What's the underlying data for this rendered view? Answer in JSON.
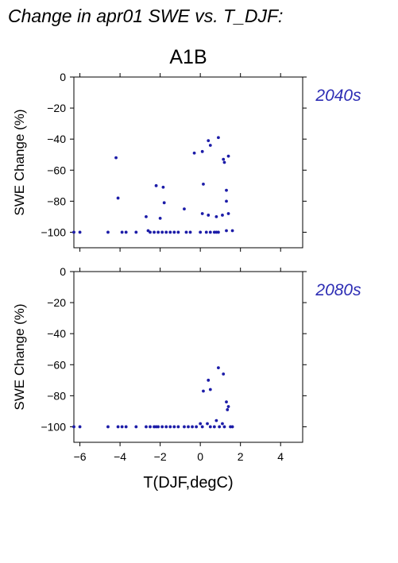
{
  "title": "Change in apr01 SWE vs. T_DJF:",
  "scenario": "A1B",
  "point_color": "#1c1ca8",
  "label_color": "#2d2db4",
  "xlabel": "T(DJF,degC)",
  "chart_data": [
    {
      "type": "scatter",
      "period_label": "2040s",
      "ylabel": "SWE Change (%)",
      "xlim": [
        -6.3,
        5.1
      ],
      "ylim": [
        -110,
        0
      ],
      "x_ticks": [
        -6,
        -4,
        -2,
        0,
        2,
        4
      ],
      "x_tick_labels": [
        "−6",
        "−4",
        "−2",
        "0",
        "2",
        "4"
      ],
      "y_ticks": [
        0,
        -20,
        -40,
        -60,
        -80,
        -100
      ],
      "y_tick_labels": [
        "0",
        "−20",
        "−40",
        "−60",
        "−80",
        "−100"
      ],
      "show_x_tick_labels": false,
      "grid": false,
      "points": [
        [
          -6.3,
          -100
        ],
        [
          -6.0,
          -100
        ],
        [
          -4.6,
          -100
        ],
        [
          -4.2,
          -52
        ],
        [
          -4.1,
          -78
        ],
        [
          -3.9,
          -100
        ],
        [
          -3.7,
          -100
        ],
        [
          -3.2,
          -100
        ],
        [
          -2.7,
          -90
        ],
        [
          -2.6,
          -99
        ],
        [
          -2.5,
          -100
        ],
        [
          -2.3,
          -100
        ],
        [
          -2.2,
          -70
        ],
        [
          -2.1,
          -100
        ],
        [
          -2.0,
          -91
        ],
        [
          -1.9,
          -100
        ],
        [
          -1.85,
          -71
        ],
        [
          -1.8,
          -81
        ],
        [
          -1.7,
          -100
        ],
        [
          -1.5,
          -100
        ],
        [
          -1.3,
          -100
        ],
        [
          -1.1,
          -100
        ],
        [
          -0.8,
          -85
        ],
        [
          -0.7,
          -100
        ],
        [
          -0.5,
          -100
        ],
        [
          -0.3,
          -49
        ],
        [
          0.0,
          -100
        ],
        [
          0.1,
          -88
        ],
        [
          0.1,
          -48
        ],
        [
          0.15,
          -69
        ],
        [
          0.3,
          -100
        ],
        [
          0.4,
          -89
        ],
        [
          0.4,
          -41
        ],
        [
          0.5,
          -44
        ],
        [
          0.5,
          -100
        ],
        [
          0.7,
          -100
        ],
        [
          0.8,
          -90
        ],
        [
          0.8,
          -100
        ],
        [
          0.9,
          -39
        ],
        [
          0.9,
          -100
        ],
        [
          1.1,
          -89
        ],
        [
          1.15,
          -53
        ],
        [
          1.2,
          -55
        ],
        [
          1.3,
          -73
        ],
        [
          1.3,
          -80
        ],
        [
          1.3,
          -99
        ],
        [
          1.4,
          -51
        ],
        [
          1.4,
          -88
        ],
        [
          1.6,
          -99
        ]
      ]
    },
    {
      "type": "scatter",
      "period_label": "2080s",
      "ylabel": "SWE Change (%)",
      "xlim": [
        -6.3,
        5.1
      ],
      "ylim": [
        -110,
        0
      ],
      "x_ticks": [
        -6,
        -4,
        -2,
        0,
        2,
        4
      ],
      "x_tick_labels": [
        "−6",
        "−4",
        "−2",
        "0",
        "2",
        "4"
      ],
      "y_ticks": [
        0,
        -20,
        -40,
        -60,
        -80,
        -100
      ],
      "y_tick_labels": [
        "0",
        "−20",
        "−40",
        "−60",
        "−80",
        "−100"
      ],
      "show_x_tick_labels": true,
      "grid": false,
      "points": [
        [
          -6.3,
          -100
        ],
        [
          -6.0,
          -100
        ],
        [
          -4.6,
          -100
        ],
        [
          -4.1,
          -100
        ],
        [
          -3.9,
          -100
        ],
        [
          -3.7,
          -100
        ],
        [
          -3.2,
          -100
        ],
        [
          -2.7,
          -100
        ],
        [
          -2.5,
          -100
        ],
        [
          -2.3,
          -100
        ],
        [
          -2.2,
          -100
        ],
        [
          -2.1,
          -100
        ],
        [
          -1.9,
          -100
        ],
        [
          -1.7,
          -100
        ],
        [
          -1.5,
          -100
        ],
        [
          -1.3,
          -100
        ],
        [
          -1.1,
          -100
        ],
        [
          -0.8,
          -100
        ],
        [
          -0.6,
          -100
        ],
        [
          -0.4,
          -100
        ],
        [
          -0.2,
          -100
        ],
        [
          0.0,
          -98
        ],
        [
          0.1,
          -100
        ],
        [
          0.15,
          -77
        ],
        [
          0.35,
          -98
        ],
        [
          0.4,
          -70
        ],
        [
          0.5,
          -76
        ],
        [
          0.5,
          -100
        ],
        [
          0.7,
          -100
        ],
        [
          0.8,
          -96
        ],
        [
          0.9,
          -62
        ],
        [
          0.95,
          -100
        ],
        [
          1.1,
          -98
        ],
        [
          1.15,
          -66
        ],
        [
          1.2,
          -100
        ],
        [
          1.3,
          -84
        ],
        [
          1.35,
          -89
        ],
        [
          1.4,
          -87
        ],
        [
          1.5,
          -100
        ],
        [
          1.6,
          -100
        ]
      ]
    }
  ]
}
